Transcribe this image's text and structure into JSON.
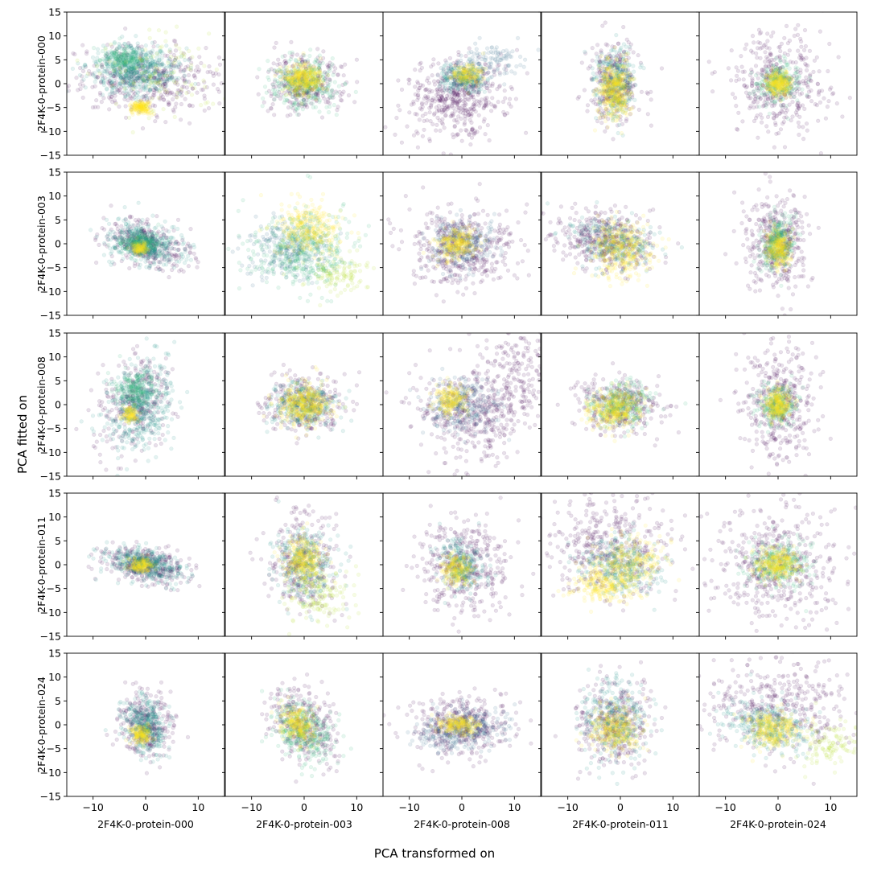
{
  "chart_data": {
    "type": "scatter",
    "layout": "5x5 grid of panels, shared x and y axes",
    "xlabel": "PCA transformed on",
    "ylabel": "PCA fitted on",
    "xlim": [
      -15,
      15
    ],
    "ylim": [
      -15,
      15
    ],
    "xticks": [
      -10,
      0,
      10
    ],
    "yticks": [
      -15,
      -10,
      -5,
      0,
      5,
      10,
      15
    ],
    "grid": false,
    "legend": "none",
    "colormap": "viridis",
    "marker": "circle",
    "alpha": 0.12,
    "column_labels": [
      "2F4K-0-protein-000",
      "2F4K-0-protein-003",
      "2F4K-0-protein-008",
      "2F4K-0-protein-011",
      "2F4K-0-protein-024"
    ],
    "row_labels": [
      "2F4K-0-protein-000",
      "2F4K-0-protein-003",
      "2F4K-0-protein-008",
      "2F4K-0-protein-011",
      "2F4K-0-protein-024"
    ],
    "colors": {
      "dark_purple": "#440154",
      "blue": "#31688e",
      "teal": "#21918c",
      "green": "#35b779",
      "yellow": "#fde725",
      "light_green": "#b5de2b"
    },
    "panels": [
      {
        "row": 0,
        "col": 0,
        "clusters": [
          {
            "cx": 0,
            "cy": 1,
            "sx": 7,
            "sy": 3.5,
            "rot": 0,
            "n": 420,
            "color": "#440154"
          },
          {
            "cx": -2,
            "cy": 3,
            "sx": 4,
            "sy": 2.5,
            "rot": 0,
            "n": 560,
            "color": "#21918c"
          },
          {
            "cx": -4,
            "cy": 5,
            "sx": 2,
            "sy": 1.2,
            "rot": 0,
            "n": 180,
            "color": "#35b779"
          },
          {
            "cx": -1,
            "cy": -5,
            "sx": 1,
            "sy": 0.7,
            "rot": 0,
            "n": 160,
            "color": "#fde725"
          },
          {
            "cx": 2,
            "cy": 2,
            "sx": 5,
            "sy": 4,
            "rot": 0,
            "n": 120,
            "color": "#b5de2b"
          }
        ]
      },
      {
        "row": 0,
        "col": 1,
        "clusters": [
          {
            "cx": 0,
            "cy": 0,
            "sx": 3.5,
            "sy": 3,
            "rot": 0,
            "n": 300,
            "color": "#440154"
          },
          {
            "cx": 0,
            "cy": 0,
            "sx": 3,
            "sy": 2.5,
            "rot": 0,
            "n": 350,
            "color": "#35b779"
          },
          {
            "cx": 0,
            "cy": 1,
            "sx": 2,
            "sy": 1.6,
            "rot": 0,
            "n": 350,
            "color": "#fde725"
          }
        ]
      },
      {
        "row": 0,
        "col": 2,
        "clusters": [
          {
            "cx": -1,
            "cy": -3,
            "sx": 5,
            "sy": 4,
            "rot": 20,
            "n": 500,
            "color": "#440154"
          },
          {
            "cx": 4,
            "cy": 4,
            "sx": 4,
            "sy": 2,
            "rot": 30,
            "n": 150,
            "color": "#31688e"
          },
          {
            "cx": 0,
            "cy": 1,
            "sx": 2,
            "sy": 1.5,
            "rot": 0,
            "n": 200,
            "color": "#21918c"
          },
          {
            "cx": 1,
            "cy": 2,
            "sx": 1.5,
            "sy": 1,
            "rot": 0,
            "n": 150,
            "color": "#fde725"
          }
        ]
      },
      {
        "row": 0,
        "col": 3,
        "clusters": [
          {
            "cx": -1,
            "cy": 0,
            "sx": 2.5,
            "sy": 4,
            "rot": 0,
            "n": 300,
            "color": "#440154"
          },
          {
            "cx": -1,
            "cy": 0,
            "sx": 2,
            "sy": 3.5,
            "rot": 0,
            "n": 300,
            "color": "#21918c"
          },
          {
            "cx": -1,
            "cy": -1,
            "sx": 1.5,
            "sy": 3,
            "rot": 0,
            "n": 400,
            "color": "#fde725"
          }
        ]
      },
      {
        "row": 0,
        "col": 4,
        "clusters": [
          {
            "cx": 0,
            "cy": 0,
            "sx": 4.5,
            "sy": 5.5,
            "rot": 0,
            "n": 400,
            "color": "#440154"
          },
          {
            "cx": 0,
            "cy": 0,
            "sx": 2,
            "sy": 2,
            "rot": 0,
            "n": 250,
            "color": "#35b779"
          },
          {
            "cx": 0,
            "cy": 0,
            "sx": 1.2,
            "sy": 1.2,
            "rot": 0,
            "n": 250,
            "color": "#fde725"
          }
        ]
      },
      {
        "row": 1,
        "col": 0,
        "clusters": [
          {
            "cx": 0,
            "cy": 0,
            "sx": 4,
            "sy": 2.2,
            "rot": -15,
            "n": 350,
            "color": "#440154"
          },
          {
            "cx": 0,
            "cy": 0,
            "sx": 3.5,
            "sy": 2,
            "rot": -15,
            "n": 400,
            "color": "#21918c"
          },
          {
            "cx": -1,
            "cy": 0,
            "sx": 2,
            "sy": 1.2,
            "rot": 0,
            "n": 200,
            "color": "#35b779"
          },
          {
            "cx": -1,
            "cy": -1,
            "sx": 0.8,
            "sy": 0.7,
            "rot": 0,
            "n": 100,
            "color": "#fde725"
          }
        ]
      },
      {
        "row": 1,
        "col": 1,
        "clusters": [
          {
            "cx": -3,
            "cy": -1,
            "sx": 4,
            "sy": 3,
            "rot": 0,
            "n": 250,
            "color": "#31688e"
          },
          {
            "cx": 0,
            "cy": -1,
            "sx": 5,
            "sy": 4,
            "rot": 0,
            "n": 400,
            "color": "#35b779"
          },
          {
            "cx": 1,
            "cy": 3,
            "sx": 3,
            "sy": 3,
            "rot": 0,
            "n": 300,
            "color": "#fde725"
          },
          {
            "cx": 6,
            "cy": -6,
            "sx": 3,
            "sy": 2.5,
            "rot": 0,
            "n": 120,
            "color": "#b5de2b"
          }
        ]
      },
      {
        "row": 1,
        "col": 2,
        "clusters": [
          {
            "cx": 0,
            "cy": -1,
            "sx": 5,
            "sy": 4,
            "rot": 0,
            "n": 450,
            "color": "#440154"
          },
          {
            "cx": 0,
            "cy": 0,
            "sx": 3,
            "sy": 2.5,
            "rot": 0,
            "n": 250,
            "color": "#31688e"
          },
          {
            "cx": -1,
            "cy": 0,
            "sx": 1.8,
            "sy": 1.5,
            "rot": 30,
            "n": 250,
            "color": "#fde725"
          }
        ]
      },
      {
        "row": 1,
        "col": 3,
        "clusters": [
          {
            "cx": -3,
            "cy": 1,
            "sx": 5,
            "sy": 3,
            "rot": -20,
            "n": 400,
            "color": "#440154"
          },
          {
            "cx": -1,
            "cy": 0,
            "sx": 4,
            "sy": 2.5,
            "rot": -20,
            "n": 250,
            "color": "#21918c"
          },
          {
            "cx": 0,
            "cy": -1,
            "sx": 3,
            "sy": 3,
            "rot": 0,
            "n": 350,
            "color": "#fde725"
          }
        ]
      },
      {
        "row": 1,
        "col": 4,
        "clusters": [
          {
            "cx": 0,
            "cy": 0,
            "sx": 3,
            "sy": 5,
            "rot": 0,
            "n": 400,
            "color": "#440154"
          },
          {
            "cx": 0,
            "cy": 0,
            "sx": 1.5,
            "sy": 3,
            "rot": -10,
            "n": 300,
            "color": "#35b779"
          },
          {
            "cx": 0,
            "cy": -1,
            "sx": 1.2,
            "sy": 2,
            "rot": 0,
            "n": 250,
            "color": "#fde725"
          }
        ]
      },
      {
        "row": 2,
        "col": 0,
        "clusters": [
          {
            "cx": -2,
            "cy": 0,
            "sx": 3,
            "sy": 5,
            "rot": -15,
            "n": 300,
            "color": "#440154"
          },
          {
            "cx": -1,
            "cy": 0,
            "sx": 3,
            "sy": 5,
            "rot": -15,
            "n": 450,
            "color": "#21918c"
          },
          {
            "cx": -2,
            "cy": 3,
            "sx": 2,
            "sy": 2,
            "rot": 0,
            "n": 200,
            "color": "#35b779"
          },
          {
            "cx": -3,
            "cy": -2,
            "sx": 0.8,
            "sy": 0.8,
            "rot": 0,
            "n": 100,
            "color": "#fde725"
          }
        ]
      },
      {
        "row": 2,
        "col": 1,
        "clusters": [
          {
            "cx": 0,
            "cy": 0,
            "sx": 4,
            "sy": 3,
            "rot": 0,
            "n": 300,
            "color": "#440154"
          },
          {
            "cx": 0,
            "cy": 0,
            "sx": 3,
            "sy": 2.5,
            "rot": 0,
            "n": 300,
            "color": "#21918c"
          },
          {
            "cx": 0,
            "cy": 0,
            "sx": 2.5,
            "sy": 2,
            "rot": 0,
            "n": 400,
            "color": "#fde725"
          }
        ]
      },
      {
        "row": 2,
        "col": 2,
        "clusters": [
          {
            "cx": 2,
            "cy": -2,
            "sx": 5,
            "sy": 5,
            "rot": 0,
            "n": 400,
            "color": "#440154"
          },
          {
            "cx": 10,
            "cy": 6,
            "sx": 4,
            "sy": 5,
            "rot": 0,
            "n": 200,
            "color": "#440154"
          },
          {
            "cx": 0,
            "cy": 0,
            "sx": 3,
            "sy": 3,
            "rot": 0,
            "n": 250,
            "color": "#31688e"
          },
          {
            "cx": -2,
            "cy": 1,
            "sx": 1.5,
            "sy": 1.5,
            "rot": 0,
            "n": 200,
            "color": "#fde725"
          }
        ]
      },
      {
        "row": 2,
        "col": 3,
        "clusters": [
          {
            "cx": 0,
            "cy": 0,
            "sx": 4,
            "sy": 3,
            "rot": 0,
            "n": 300,
            "color": "#440154"
          },
          {
            "cx": 0,
            "cy": 0,
            "sx": 3,
            "sy": 2.5,
            "rot": 0,
            "n": 300,
            "color": "#35b779"
          },
          {
            "cx": -1,
            "cy": -1,
            "sx": 2.5,
            "sy": 2,
            "rot": 20,
            "n": 350,
            "color": "#fde725"
          }
        ]
      },
      {
        "row": 2,
        "col": 4,
        "clusters": [
          {
            "cx": 0,
            "cy": 0,
            "sx": 3.5,
            "sy": 6,
            "rot": 0,
            "n": 400,
            "color": "#440154"
          },
          {
            "cx": 0,
            "cy": 0,
            "sx": 2,
            "sy": 2,
            "rot": 0,
            "n": 250,
            "color": "#35b779"
          },
          {
            "cx": 0,
            "cy": 0,
            "sx": 1.3,
            "sy": 1.5,
            "rot": 0,
            "n": 250,
            "color": "#fde725"
          }
        ]
      },
      {
        "row": 3,
        "col": 0,
        "clusters": [
          {
            "cx": 0,
            "cy": 0,
            "sx": 4,
            "sy": 1.8,
            "rot": -15,
            "n": 350,
            "color": "#440154"
          },
          {
            "cx": 0,
            "cy": 0,
            "sx": 3.5,
            "sy": 1.5,
            "rot": -15,
            "n": 400,
            "color": "#21918c"
          },
          {
            "cx": -1,
            "cy": 0,
            "sx": 1.2,
            "sy": 0.7,
            "rot": 0,
            "n": 150,
            "color": "#fde725"
          }
        ]
      },
      {
        "row": 3,
        "col": 1,
        "clusters": [
          {
            "cx": 0,
            "cy": 0,
            "sx": 3.5,
            "sy": 5,
            "rot": 0,
            "n": 300,
            "color": "#440154"
          },
          {
            "cx": 0,
            "cy": 0,
            "sx": 3,
            "sy": 4,
            "rot": 0,
            "n": 300,
            "color": "#21918c"
          },
          {
            "cx": 3,
            "cy": -6,
            "sx": 3,
            "sy": 3,
            "rot": 0,
            "n": 150,
            "color": "#b5de2b"
          },
          {
            "cx": 0,
            "cy": 1,
            "sx": 2,
            "sy": 2.5,
            "rot": 0,
            "n": 300,
            "color": "#fde725"
          }
        ]
      },
      {
        "row": 3,
        "col": 2,
        "clusters": [
          {
            "cx": 0,
            "cy": 0,
            "sx": 4,
            "sy": 5,
            "rot": 0,
            "n": 400,
            "color": "#440154"
          },
          {
            "cx": 0,
            "cy": 0,
            "sx": 2,
            "sy": 3,
            "rot": 20,
            "n": 250,
            "color": "#21918c"
          },
          {
            "cx": -1,
            "cy": -1,
            "sx": 1.3,
            "sy": 1.8,
            "rot": 0,
            "n": 200,
            "color": "#fde725"
          }
        ]
      },
      {
        "row": 3,
        "col": 3,
        "clusters": [
          {
            "cx": -2,
            "cy": 4,
            "sx": 6,
            "sy": 5,
            "rot": 0,
            "n": 400,
            "color": "#440154"
          },
          {
            "cx": 0,
            "cy": 0,
            "sx": 4,
            "sy": 3,
            "rot": -20,
            "n": 300,
            "color": "#21918c"
          },
          {
            "cx": -3,
            "cy": -4,
            "sx": 3,
            "sy": 2,
            "rot": 0,
            "n": 250,
            "color": "#fde725"
          },
          {
            "cx": 2,
            "cy": 1,
            "sx": 3,
            "sy": 2.5,
            "rot": 0,
            "n": 250,
            "color": "#fde725"
          }
        ]
      },
      {
        "row": 3,
        "col": 4,
        "clusters": [
          {
            "cx": 0,
            "cy": 0,
            "sx": 6,
            "sy": 6,
            "rot": 0,
            "n": 450,
            "color": "#440154"
          },
          {
            "cx": 0,
            "cy": 0,
            "sx": 3,
            "sy": 2.5,
            "rot": 0,
            "n": 300,
            "color": "#35b779"
          },
          {
            "cx": 0,
            "cy": 0,
            "sx": 2,
            "sy": 1.8,
            "rot": 0,
            "n": 300,
            "color": "#fde725"
          }
        ]
      },
      {
        "row": 4,
        "col": 0,
        "clusters": [
          {
            "cx": 0,
            "cy": 0,
            "sx": 2.5,
            "sy": 3.5,
            "rot": 15,
            "n": 300,
            "color": "#440154"
          },
          {
            "cx": 0,
            "cy": 0,
            "sx": 2,
            "sy": 3,
            "rot": 15,
            "n": 350,
            "color": "#21918c"
          },
          {
            "cx": -1,
            "cy": -2,
            "sx": 1,
            "sy": 1,
            "rot": 0,
            "n": 150,
            "color": "#fde725"
          }
        ]
      },
      {
        "row": 4,
        "col": 1,
        "clusters": [
          {
            "cx": 0,
            "cy": 0,
            "sx": 3,
            "sy": 4,
            "rot": 30,
            "n": 300,
            "color": "#440154"
          },
          {
            "cx": 0,
            "cy": -1,
            "sx": 2.5,
            "sy": 3.5,
            "rot": 30,
            "n": 350,
            "color": "#35b779"
          },
          {
            "cx": -1,
            "cy": 0,
            "sx": 1.5,
            "sy": 2,
            "rot": 30,
            "n": 250,
            "color": "#fde725"
          }
        ]
      },
      {
        "row": 4,
        "col": 2,
        "clusters": [
          {
            "cx": 0,
            "cy": 0,
            "sx": 5,
            "sy": 3,
            "rot": 10,
            "n": 400,
            "color": "#440154"
          },
          {
            "cx": 0,
            "cy": -1,
            "sx": 4,
            "sy": 2,
            "rot": 10,
            "n": 300,
            "color": "#31688e"
          },
          {
            "cx": -1,
            "cy": 0,
            "sx": 2,
            "sy": 1,
            "rot": 0,
            "n": 200,
            "color": "#fde725"
          }
        ]
      },
      {
        "row": 4,
        "col": 3,
        "clusters": [
          {
            "cx": -1,
            "cy": 0,
            "sx": 3.5,
            "sy": 4.5,
            "rot": 0,
            "n": 350,
            "color": "#440154"
          },
          {
            "cx": -1,
            "cy": 1,
            "sx": 3,
            "sy": 4,
            "rot": 0,
            "n": 300,
            "color": "#21918c"
          },
          {
            "cx": -1,
            "cy": -1,
            "sx": 2.5,
            "sy": 2.5,
            "rot": 0,
            "n": 300,
            "color": "#fde725"
          }
        ]
      },
      {
        "row": 4,
        "col": 4,
        "clusters": [
          {
            "cx": 0,
            "cy": 4,
            "sx": 8,
            "sy": 5,
            "rot": 0,
            "n": 400,
            "color": "#440154"
          },
          {
            "cx": -2,
            "cy": 0,
            "sx": 4,
            "sy": 2.5,
            "rot": -15,
            "n": 300,
            "color": "#21918c"
          },
          {
            "cx": 10,
            "cy": -4,
            "sx": 3,
            "sy": 2.5,
            "rot": 0,
            "n": 120,
            "color": "#b5de2b"
          },
          {
            "cx": -1,
            "cy": -1,
            "sx": 2.5,
            "sy": 2,
            "rot": 0,
            "n": 300,
            "color": "#fde725"
          }
        ]
      }
    ]
  }
}
